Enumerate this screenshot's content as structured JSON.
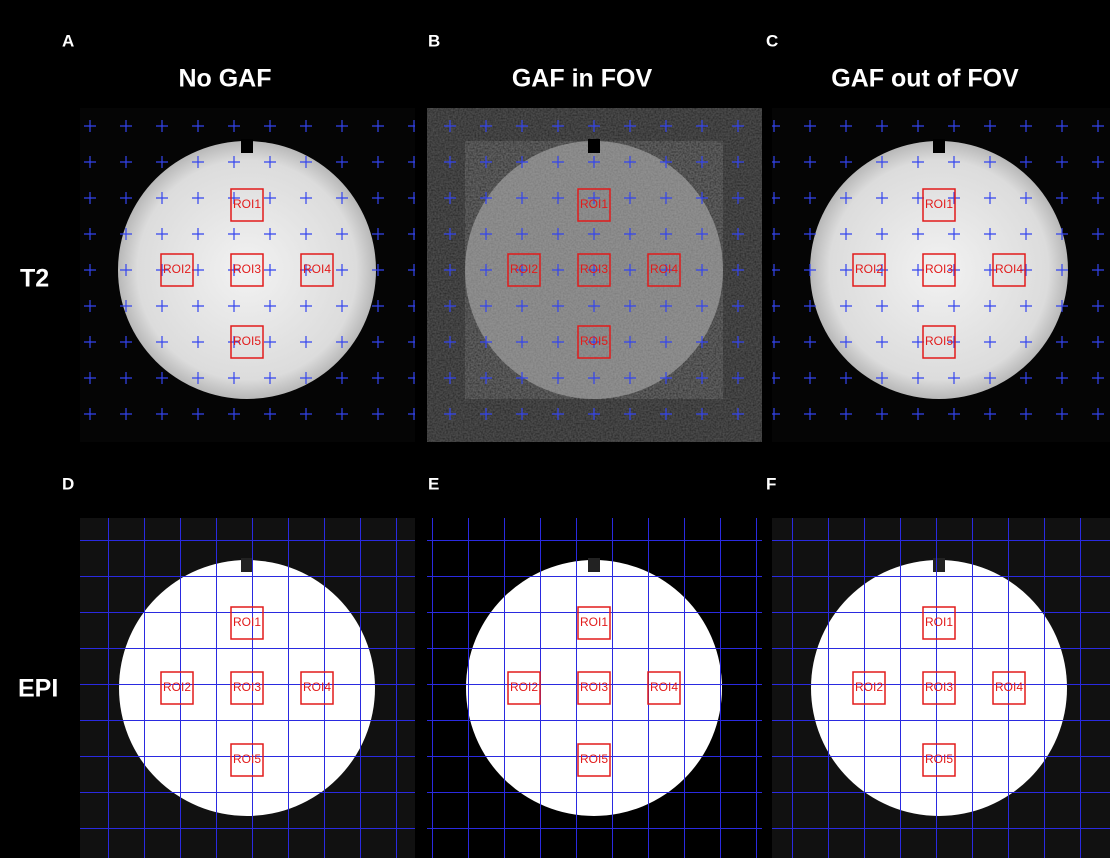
{
  "columns": [
    "No GAF",
    "GAF in FOV",
    "GAF out of FOV"
  ],
  "rows": [
    "T2",
    "EPI"
  ],
  "panels": [
    {
      "letter": "A",
      "rois": [
        "ROI1",
        "ROI2",
        "ROI3",
        "ROI4",
        "ROI5"
      ]
    },
    {
      "letter": "B",
      "rois": [
        "ROI1",
        "ROI2",
        "ROI3",
        "ROI4",
        "ROI5"
      ]
    },
    {
      "letter": "C",
      "rois": [
        "ROI1",
        "ROI2",
        "ROI3",
        "ROI4",
        "ROI5"
      ]
    },
    {
      "letter": "D",
      "rois": [
        "ROI1",
        "ROI2",
        "ROI3",
        "ROI4",
        "ROI5"
      ]
    },
    {
      "letter": "E",
      "rois": [
        "ROI1",
        "ROI2",
        "ROI3",
        "ROI4",
        "ROI5"
      ]
    },
    {
      "letter": "F",
      "rois": [
        "ROI1",
        "ROI2",
        "ROI3",
        "ROI4",
        "ROI5"
      ]
    }
  ]
}
